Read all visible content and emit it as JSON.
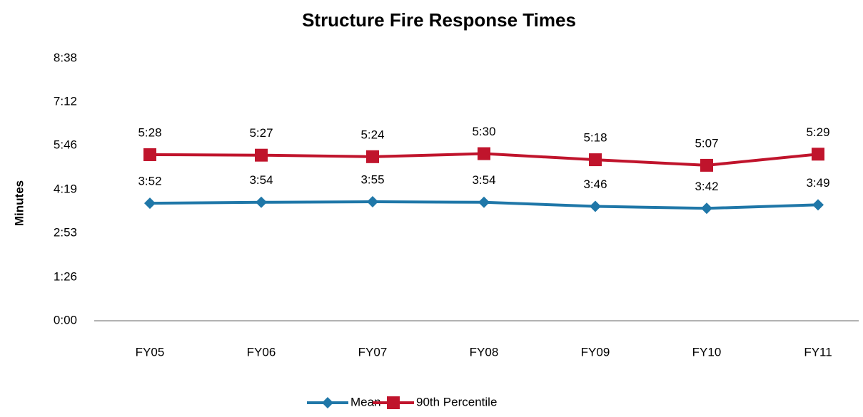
{
  "chart_data": {
    "type": "line",
    "title": "Structure Fire Response Times",
    "y_label": "Minutes",
    "categories": [
      "FY05",
      "FY06",
      "FY07",
      "FY08",
      "FY09",
      "FY10",
      "FY11"
    ],
    "series": [
      {
        "name": "Mean",
        "color": "#1f77a8",
        "marker": "diamond",
        "values": [
          232,
          234,
          235,
          234,
          226,
          222,
          229
        ],
        "value_labels": [
          "3:52",
          "3:54",
          "3:55",
          "3:54",
          "3:46",
          "3:42",
          "3:49"
        ]
      },
      {
        "name": "90th Percentile",
        "color": "#c0142c",
        "marker": "square",
        "values": [
          328,
          327,
          324,
          330,
          318,
          307,
          329
        ],
        "value_labels": [
          "5:28",
          "5:27",
          "5:24",
          "5:30",
          "5:18",
          "5:07",
          "5:29"
        ]
      }
    ],
    "ylim": [
      0,
      518
    ],
    "yticks": [
      {
        "value": 0,
        "label": "0:00"
      },
      {
        "value": 86,
        "label": "1:26"
      },
      {
        "value": 173,
        "label": "2:53"
      },
      {
        "value": 259,
        "label": "4:19"
      },
      {
        "value": 346,
        "label": "5:46"
      },
      {
        "value": 432,
        "label": "7:12"
      },
      {
        "value": 518,
        "label": "8:38"
      }
    ],
    "grid": false,
    "legend": "bottom"
  }
}
